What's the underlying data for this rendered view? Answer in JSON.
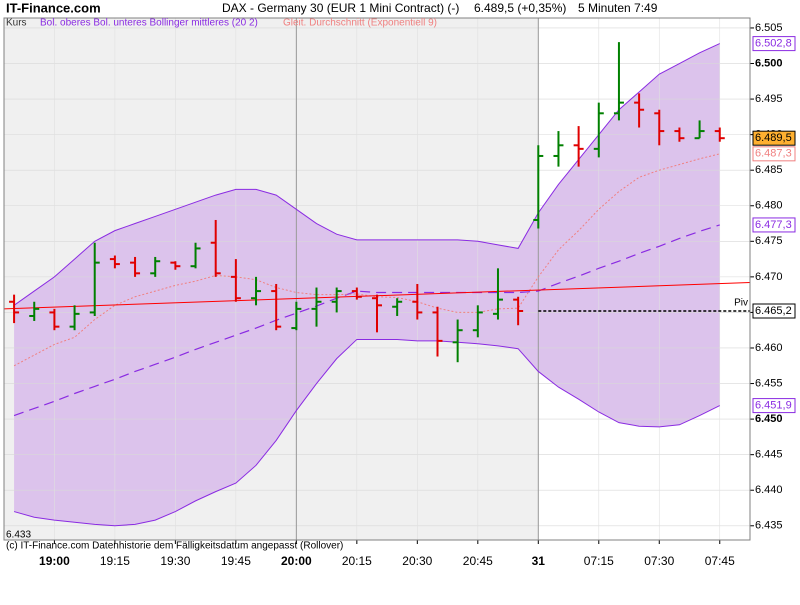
{
  "chart_data": {
    "type": "ohlc",
    "brand": "IT-Finance.com",
    "title": "DAX - Germany 30 (EUR 1 Mini Contract) (-)",
    "quote": "6.489,5 (+0,35%)",
    "interval": "5 Minuten  7:49",
    "footer": "(c) IT-Finance.com  Datenhistorie dem Fälligkeitsdatum angepasst (Rollover)",
    "ylim": [
      6.433,
      6.5064
    ],
    "ylim_label": "6.433",
    "yticks": [
      {
        "value": 6.435,
        "label": "6.435"
      },
      {
        "value": 6.44,
        "label": "6.440"
      },
      {
        "value": 6.445,
        "label": "6.445"
      },
      {
        "value": 6.45,
        "label": "6.450"
      },
      {
        "value": 6.455,
        "label": "6.455"
      },
      {
        "value": 6.46,
        "label": "6.460"
      },
      {
        "value": 6.465,
        "label": "6.465"
      },
      {
        "value": 6.47,
        "label": "6.470"
      },
      {
        "value": 6.475,
        "label": "6.475"
      },
      {
        "value": 6.48,
        "label": "6.480"
      },
      {
        "value": 6.485,
        "label": "6.485"
      },
      {
        "value": 6.49,
        "label": "6.490"
      },
      {
        "value": 6.495,
        "label": "6.495"
      },
      {
        "value": 6.5,
        "label": "6.500"
      },
      {
        "value": 6.505,
        "label": "6.505"
      }
    ],
    "bold_ticks": [
      "6.450",
      "6.500",
      "19:00",
      "20:00",
      "31"
    ],
    "categories": [
      null,
      null,
      "19:00",
      null,
      null,
      "19:15",
      null,
      null,
      "19:30",
      null,
      null,
      "19:45",
      null,
      null,
      "20:00",
      null,
      null,
      "20:15",
      null,
      null,
      "20:30",
      null,
      null,
      "20:45",
      null,
      null,
      "31",
      null,
      null,
      "07:15",
      null,
      null,
      "07:30",
      null,
      null,
      "07:45"
    ],
    "day_break": [
      14,
      26
    ],
    "price": {
      "name": "Kurs",
      "up_color": "#008000",
      "down_color": "#e00000",
      "open": [
        6.4665,
        6.4645,
        6.465,
        6.463,
        6.465,
        6.4725,
        6.472,
        6.4705,
        6.472,
        6.4715,
        6.4748,
        6.47,
        6.467,
        6.468,
        6.4628,
        6.4655,
        6.4665,
        6.468,
        6.467,
        6.4658,
        6.4665,
        6.465,
        6.4608,
        6.4625,
        6.4648,
        6.4668,
        6.478,
        6.487,
        6.4885,
        6.488,
        6.493,
        6.4945,
        6.493,
        6.4905,
        6.4895,
        6.4905
      ],
      "high": [
        6.4675,
        6.4665,
        6.4655,
        6.466,
        6.4748,
        6.473,
        6.4728,
        6.4728,
        6.4722,
        6.4748,
        6.478,
        6.4725,
        6.47,
        6.469,
        6.4665,
        6.4685,
        6.4685,
        6.4685,
        6.4675,
        6.467,
        6.469,
        6.4658,
        6.464,
        6.466,
        6.4712,
        6.4672,
        6.4885,
        6.4905,
        6.4912,
        6.4945,
        6.503,
        6.4958,
        6.4935,
        6.491,
        6.492,
        6.491
      ],
      "low": [
        6.4635,
        6.4638,
        6.4625,
        6.4625,
        6.4645,
        6.4712,
        6.47,
        6.47,
        6.471,
        6.4712,
        6.47,
        6.4665,
        6.466,
        6.4625,
        6.4625,
        6.463,
        6.465,
        6.4668,
        6.4622,
        6.4645,
        6.464,
        6.4588,
        6.458,
        6.4615,
        6.464,
        6.4632,
        6.4768,
        6.4855,
        6.4855,
        6.4868,
        6.492,
        6.491,
        6.4885,
        6.489,
        6.4895,
        6.489
      ],
      "close": [
        6.465,
        6.4655,
        6.463,
        6.4648,
        6.472,
        6.4718,
        6.4705,
        6.4722,
        6.4715,
        6.474,
        6.4705,
        6.467,
        6.468,
        6.463,
        6.4655,
        6.4665,
        6.468,
        6.4672,
        6.466,
        6.4665,
        6.465,
        6.461,
        6.4625,
        6.465,
        6.4668,
        6.4652,
        6.487,
        6.4885,
        6.488,
        6.493,
        6.4945,
        6.4935,
        6.4905,
        6.4895,
        6.4905,
        6.4895
      ],
      "last_label": "6.489,5"
    },
    "bollinger": {
      "name": "Bol. oberes Bol. unteres Bollinger mittleres (20 2)",
      "color": "#8a2be2",
      "fill": "#dcc3ec",
      "upper": [
        6.466,
        6.468,
        6.47,
        6.4725,
        6.475,
        6.4765,
        6.4775,
        6.4785,
        6.4795,
        6.4805,
        6.4815,
        6.4823,
        6.4823,
        6.4815,
        6.4795,
        6.4775,
        6.476,
        6.4752,
        6.4752,
        6.4752,
        6.4752,
        6.4752,
        6.4752,
        6.475,
        6.4745,
        6.474,
        6.479,
        6.483,
        6.4865,
        6.49,
        6.4935,
        6.496,
        6.4985,
        6.5,
        6.5015,
        6.5028
      ],
      "lower": [
        6.437,
        6.4362,
        6.4358,
        6.4355,
        6.4352,
        6.435,
        6.4352,
        6.4358,
        6.437,
        6.4385,
        6.4398,
        6.441,
        6.4435,
        6.447,
        6.4512,
        6.455,
        6.4585,
        6.4612,
        6.4612,
        6.4612,
        6.461,
        6.461,
        6.4608,
        6.4606,
        6.4603,
        6.4599,
        6.4567,
        6.4545,
        6.4528,
        6.451,
        6.4495,
        6.449,
        6.4489,
        6.4492,
        6.4505,
        6.4519
      ],
      "middle": [
        6.4505,
        6.4515,
        6.4525,
        6.4536,
        6.4546,
        6.4556,
        6.4567,
        6.4577,
        6.4587,
        6.4598,
        6.4608,
        6.4618,
        6.4628,
        6.4639,
        6.4649,
        6.4659,
        6.467,
        6.468,
        6.4678,
        6.4678,
        6.4678,
        6.4678,
        6.4678,
        6.4678,
        6.4678,
        6.4678,
        6.468,
        6.4691,
        6.4701,
        6.4712,
        6.4722,
        6.4733,
        6.4743,
        6.4754,
        6.4764,
        6.4773
      ],
      "upper_label": "6.502,8",
      "lower_label": "6.451,9",
      "middle_label": "6.477,3"
    },
    "ema": {
      "name": "Gleit. Durchschnitt (Exponentiell 9)",
      "color": "#f08080",
      "values": [
        6.4575,
        6.459,
        6.4605,
        6.4615,
        6.464,
        6.466,
        6.4672,
        6.468,
        6.4688,
        6.4694,
        6.4702,
        6.47,
        6.4696,
        6.4685,
        6.4678,
        6.4675,
        6.4675,
        6.4676,
        6.4672,
        6.4671,
        6.4665,
        6.4656,
        6.465,
        6.465,
        6.4655,
        6.4656,
        6.47,
        6.4738,
        6.4765,
        6.4795,
        6.482,
        6.484,
        6.485,
        6.4858,
        6.4866,
        6.4873
      ],
      "last_label": "6.487,3"
    },
    "trendline": {
      "color": "#ff0000",
      "values": [
        6.4655,
        6.4692
      ]
    },
    "pivot": {
      "label": "Piv",
      "value": 6.4652,
      "value_label": "6.465,2"
    }
  }
}
